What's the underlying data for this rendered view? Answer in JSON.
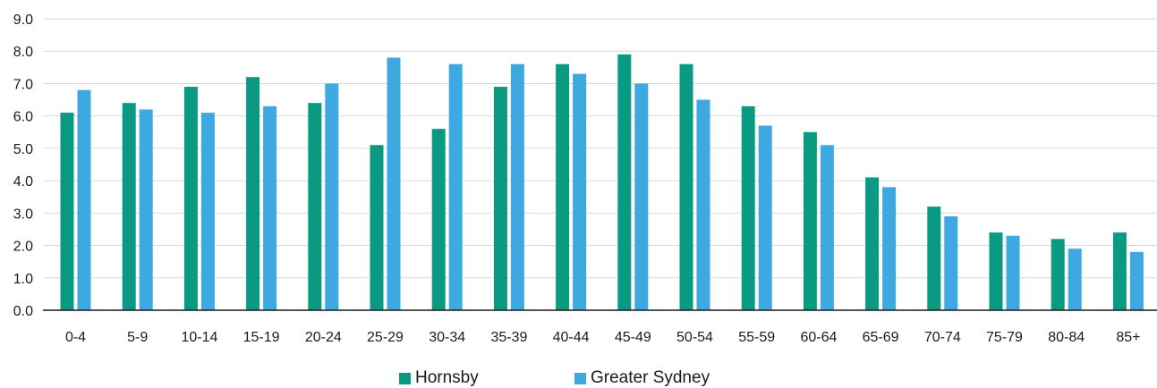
{
  "chart_data": {
    "type": "bar",
    "categories": [
      "0-4",
      "5-9",
      "10-14",
      "15-19",
      "20-24",
      "25-29",
      "30-34",
      "35-39",
      "40-44",
      "45-49",
      "50-54",
      "55-59",
      "60-64",
      "65-69",
      "70-74",
      "75-79",
      "80-84",
      "85+"
    ],
    "series": [
      {
        "name": "Hornsby",
        "color": "#0a9a82",
        "values": [
          6.1,
          6.4,
          6.9,
          7.2,
          6.4,
          5.1,
          5.6,
          6.9,
          7.6,
          7.9,
          7.6,
          6.3,
          5.5,
          4.1,
          3.2,
          2.4,
          2.2,
          2.4
        ]
      },
      {
        "name": "Greater Sydney",
        "color": "#3da9e0",
        "values": [
          6.8,
          6.2,
          6.1,
          6.3,
          7.0,
          7.8,
          7.6,
          7.6,
          7.3,
          7.0,
          6.5,
          5.7,
          5.1,
          3.8,
          2.9,
          2.3,
          1.9,
          1.8
        ]
      }
    ],
    "y_ticks": [
      "0.0",
      "1.0",
      "2.0",
      "3.0",
      "4.0",
      "5.0",
      "6.0",
      "7.0",
      "8.0",
      "9.0"
    ],
    "ylim": [
      0,
      9
    ],
    "grid": true,
    "legend_position": "bottom-center",
    "title": "",
    "xlabel": "",
    "ylabel": ""
  }
}
